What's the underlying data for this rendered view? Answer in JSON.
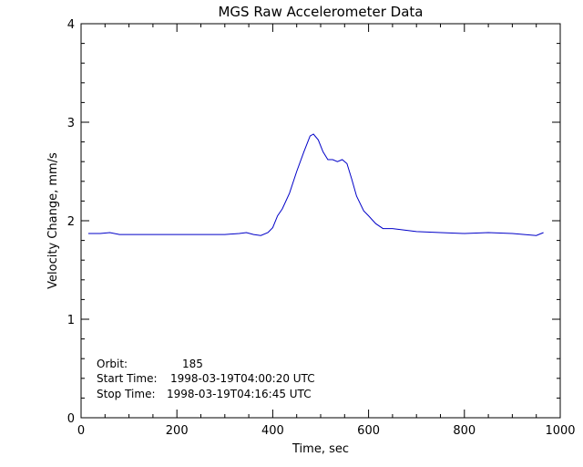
{
  "chart_data": {
    "type": "line",
    "title": "MGS Raw Accelerometer Data",
    "xlabel": "Time, sec",
    "ylabel": "Velocity Change, mm/s",
    "xlim": [
      0,
      1000
    ],
    "ylim": [
      0,
      4
    ],
    "xticks": [
      "0",
      "200",
      "400",
      "600",
      "800",
      "1000"
    ],
    "yticks": [
      "0",
      "1",
      "2",
      "3",
      "4"
    ],
    "grid": false,
    "line_color": "#0000c8",
    "series": [
      {
        "x": [
          15,
          40,
          60,
          80,
          100,
          150,
          200,
          250,
          300,
          330,
          345,
          360,
          375,
          390,
          400,
          410,
          420,
          435,
          450,
          465,
          478,
          485,
          495,
          505,
          515,
          525,
          535,
          545,
          555,
          565,
          575,
          590,
          600,
          615,
          630,
          650,
          700,
          750,
          800,
          850,
          900,
          950,
          965
        ],
        "values": [
          1.87,
          1.87,
          1.88,
          1.86,
          1.86,
          1.86,
          1.86,
          1.86,
          1.86,
          1.87,
          1.88,
          1.86,
          1.85,
          1.88,
          1.93,
          2.05,
          2.12,
          2.28,
          2.5,
          2.7,
          2.86,
          2.88,
          2.82,
          2.7,
          2.62,
          2.62,
          2.6,
          2.62,
          2.58,
          2.42,
          2.25,
          2.1,
          2.05,
          1.97,
          1.92,
          1.92,
          1.89,
          1.88,
          1.87,
          1.88,
          1.87,
          1.85,
          1.88
        ]
      }
    ],
    "annotations": [
      {
        "label": "Orbit:",
        "value": "185"
      },
      {
        "label": "Start Time:",
        "value": "1998-03-19T04:00:20 UTC"
      },
      {
        "label": "Stop Time:",
        "value": "1998-03-19T04:16:45 UTC"
      }
    ]
  }
}
